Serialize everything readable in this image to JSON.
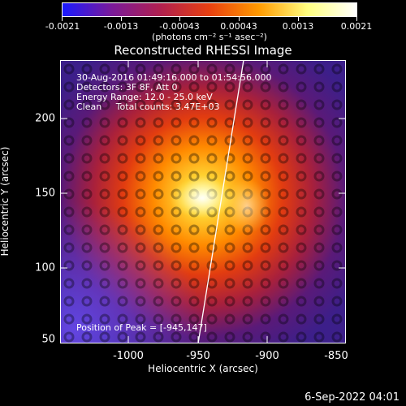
{
  "colorbar": {
    "tick_labels": [
      "-0.0021",
      "-0.0013",
      "-0.00043",
      "0.00043",
      "0.0013",
      "0.0021"
    ],
    "unit_label": "(photons cm⁻² s⁻¹ asec⁻²)",
    "colors": [
      "#1a1aff",
      "#7a1a9a",
      "#b0204f",
      "#e84010",
      "#ff9a00",
      "#ffff80",
      "#ffffff"
    ]
  },
  "title": "Reconstructed RHESSI Image",
  "annotations": {
    "time_range": "30-Aug-2016 01:49:16.000 to 01:54:56.000",
    "detectors": "Detectors: 3F 8F, Att 0",
    "energy": "Energy Range: 12.0 - 25.0 keV",
    "clean": "Clean     Total counts: 3.47E+03",
    "peak": "Position of Peak = [-945,147]"
  },
  "xaxis": {
    "label": "Heliocentric X (arcsec)",
    "ticks": [
      "-1000",
      "-950",
      "-900",
      "-850"
    ]
  },
  "yaxis": {
    "label": "Heliocentric Y (arcsec)",
    "ticks": [
      "200",
      "150",
      "100",
      "50"
    ]
  },
  "datestamp": "6-Sep-2022 04:01"
}
